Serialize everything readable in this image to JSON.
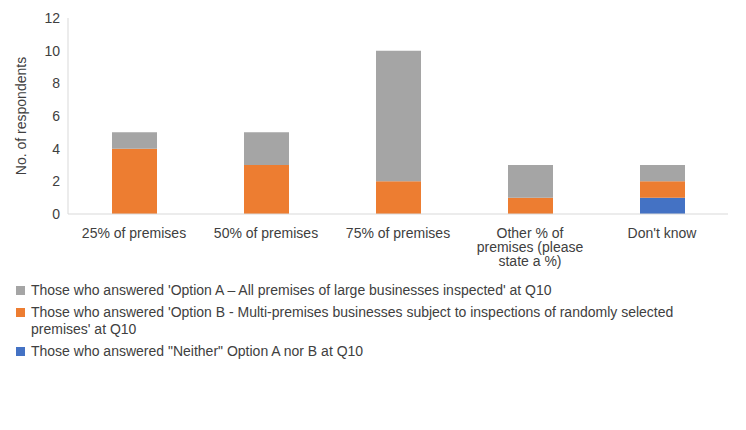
{
  "chart_data": {
    "type": "bar",
    "stacked": true,
    "grid": false,
    "legend": "bottom",
    "y_label": "No. of respondents",
    "categories": [
      "25% of premises",
      "50% of premises",
      "75% of premises",
      "Other % of premises (please state a %)",
      "Don't know"
    ],
    "ylim": [
      0,
      12
    ],
    "yticks": [
      0,
      2,
      4,
      6,
      8,
      10,
      12
    ],
    "series": [
      {
        "name": "Those who answered 'Option A – All premises of large businesses inspected' at Q10",
        "color": "#a5a5a5",
        "values": [
          1,
          2,
          8,
          2,
          1
        ]
      },
      {
        "name": "Those who answered 'Option B -  Multi-premises businesses subject to inspections of randomly selected premises' at Q10",
        "color": "#ed7d31",
        "values": [
          4,
          3,
          2,
          1,
          1
        ]
      },
      {
        "name": "Those who answered \"Neither\" Option A nor B at Q10",
        "color": "#4472c4",
        "values": [
          0,
          0,
          0,
          0,
          1
        ]
      }
    ]
  }
}
